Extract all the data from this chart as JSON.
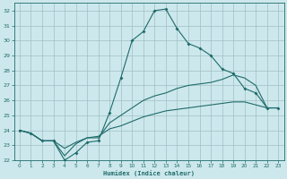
{
  "xlabel": "Humidex (Indice chaleur)",
  "bg_color": "#cde8ec",
  "grid_color": "#9fbfc4",
  "line_color": "#1e6b6b",
  "xlim": [
    -0.5,
    23.5
  ],
  "ylim": [
    22,
    32.5
  ],
  "x_ticks": [
    0,
    1,
    2,
    3,
    4,
    5,
    6,
    7,
    8,
    9,
    10,
    11,
    12,
    13,
    14,
    15,
    16,
    17,
    18,
    19,
    20,
    21,
    22,
    23
  ],
  "y_ticks": [
    22,
    23,
    24,
    25,
    26,
    27,
    28,
    29,
    30,
    31,
    32
  ],
  "series1_x": [
    0,
    1,
    2,
    3,
    4,
    5,
    6,
    7,
    8,
    9,
    10,
    11,
    12,
    13,
    14,
    15,
    16,
    17,
    18,
    19,
    20,
    21,
    22,
    23
  ],
  "series1_y": [
    24.0,
    23.8,
    23.3,
    23.3,
    22.0,
    22.5,
    23.2,
    23.3,
    25.2,
    27.5,
    30.0,
    30.6,
    32.0,
    32.1,
    30.8,
    29.8,
    29.5,
    29.0,
    28.1,
    27.8,
    26.8,
    26.5,
    25.5,
    25.5
  ],
  "series2_x": [
    0,
    1,
    2,
    3,
    4,
    5,
    6,
    7,
    8,
    9,
    10,
    11,
    12,
    13,
    14,
    15,
    16,
    17,
    18,
    19,
    20,
    21,
    22,
    23
  ],
  "series2_y": [
    24.0,
    23.8,
    23.3,
    23.3,
    22.3,
    23.1,
    23.5,
    23.5,
    24.5,
    25.0,
    25.5,
    26.0,
    26.3,
    26.5,
    26.8,
    27.0,
    27.1,
    27.2,
    27.4,
    27.7,
    27.5,
    27.0,
    25.5,
    25.5
  ],
  "series3_x": [
    0,
    1,
    2,
    3,
    4,
    5,
    6,
    7,
    8,
    9,
    10,
    11,
    12,
    13,
    14,
    15,
    16,
    17,
    18,
    19,
    20,
    21,
    22,
    23
  ],
  "series3_y": [
    24.0,
    23.8,
    23.3,
    23.3,
    22.8,
    23.2,
    23.5,
    23.6,
    24.1,
    24.3,
    24.6,
    24.9,
    25.1,
    25.3,
    25.4,
    25.5,
    25.6,
    25.7,
    25.8,
    25.9,
    25.9,
    25.7,
    25.5,
    25.5
  ]
}
